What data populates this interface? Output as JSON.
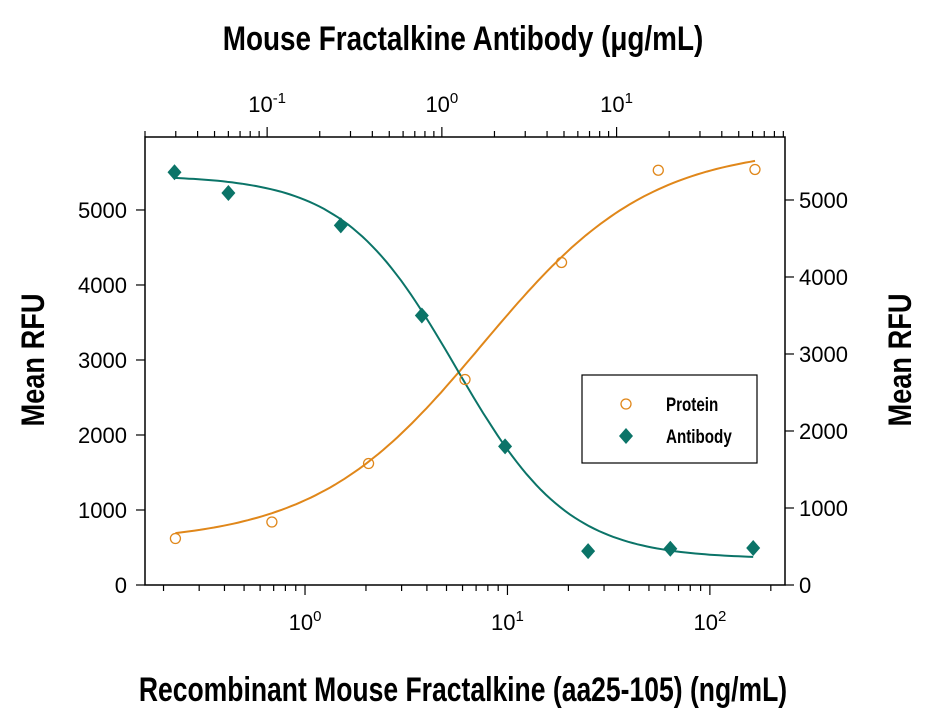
{
  "chart_data": {
    "type": "scatter",
    "title": "",
    "top_axis": {
      "label": "Mouse Fractalkine Antibody (μg/mL)",
      "scale": "log",
      "range": [
        0.02,
        92
      ],
      "ticks": [
        {
          "value": 0.1,
          "base": "10",
          "exp": "-1"
        },
        {
          "value": 1,
          "base": "10",
          "exp": "0"
        },
        {
          "value": 10,
          "base": "10",
          "exp": "1"
        }
      ]
    },
    "bottom_axis": {
      "label": "Recombinant Mouse Fractalkine (aa25-105) (ng/mL)",
      "scale": "log",
      "range": [
        0.162,
        235
      ],
      "ticks": [
        {
          "value": 1,
          "base": "10",
          "exp": "0"
        },
        {
          "value": 10,
          "base": "10",
          "exp": "1"
        },
        {
          "value": 100,
          "base": "10",
          "exp": "2"
        }
      ]
    },
    "left_axis": {
      "label": "Mean RFU",
      "range": [
        0,
        5973
      ],
      "ticks": [
        "0",
        "1000",
        "2000",
        "3000",
        "4000",
        "5000"
      ]
    },
    "right_axis": {
      "label": "Mean RFU",
      "range": [
        0,
        5818
      ],
      "ticks": [
        "0",
        "1000",
        "2000",
        "3000",
        "4000",
        "5000"
      ]
    },
    "grid": false,
    "legend_position": "center-right",
    "series": [
      {
        "name": "Protein",
        "x_axis": "bottom",
        "y_axis": "left",
        "marker": "open-circle",
        "color": "#e0871a",
        "x": [
          0.229,
          0.686,
          2.06,
          6.17,
          18.5,
          55.6,
          167
        ],
        "y": [
          620,
          840,
          1620,
          2740,
          4300,
          5530,
          5540
        ],
        "fit": {
          "bottom": 560,
          "top": 5850,
          "ec50": 7.5,
          "hill": 1.05
        }
      },
      {
        "name": "Antibody",
        "x_axis": "top",
        "y_axis": "right",
        "marker": "filled-diamond",
        "color": "#0b7468",
        "x": [
          0.0295,
          0.06,
          0.264,
          0.768,
          2.3,
          6.87,
          20.3,
          60.5
        ],
        "y": [
          5360,
          5090,
          4670,
          3500,
          1800,
          440,
          470,
          480
        ],
        "fit": {
          "bottom": 340,
          "top": 5320,
          "ec50": 1.2,
          "hill": 1.35
        }
      }
    ]
  }
}
